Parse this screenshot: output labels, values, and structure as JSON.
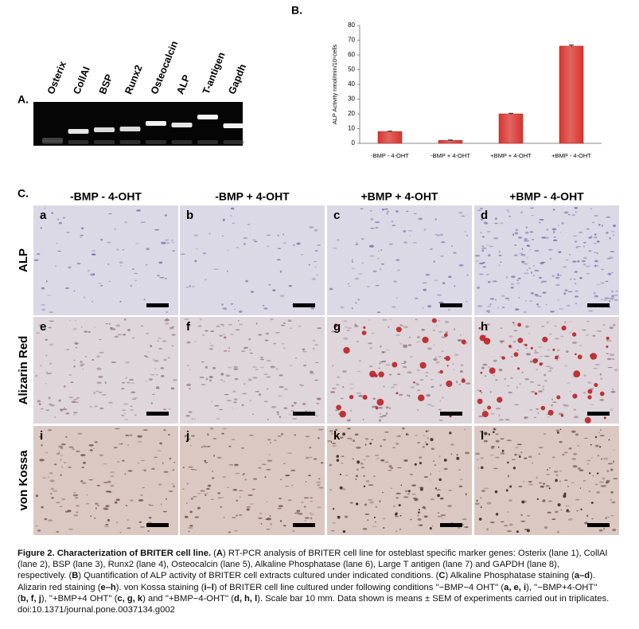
{
  "panel_labels": [
    "A.",
    "B.",
    "C."
  ],
  "gel": {
    "lanes": [
      "Osterix",
      "CollAI",
      "BSP",
      "Runx2",
      "Osteocalcin",
      "ALP",
      "T-antigen",
      "Gapdh"
    ]
  },
  "chart_data": {
    "type": "bar",
    "ylabel": "ALP Activity nmol/min/10⁶cells",
    "categories": [
      "-BMP - 4-OHT",
      "-BMP + 4-OHT",
      "+BMP + 4-OHT",
      "+BMP - 4-OHT"
    ],
    "values": [
      8,
      2,
      20,
      66
    ],
    "errors": [
      0.3,
      0.3,
      0.4,
      0.8
    ],
    "color": "#d8332c",
    "ylim": [
      0,
      80
    ],
    "yticks": [
      0,
      10,
      20,
      30,
      40,
      50,
      60,
      70,
      80
    ],
    "grid": false
  },
  "staining": {
    "columns": [
      "-BMP - 4-OHT",
      "-BMP + 4-OHT",
      "+BMP + 4-OHT",
      "+BMP - 4-OHT"
    ],
    "rows": [
      "ALP",
      "Alizarin Red",
      "von Kossa"
    ],
    "letters": [
      [
        "a",
        "b",
        "c",
        "d"
      ],
      [
        "e",
        "f",
        "g",
        "h"
      ],
      [
        "i",
        "j",
        "k",
        "l"
      ]
    ]
  },
  "caption": {
    "parts": [
      {
        "text": "Figure 2. Characterization of BRITER cell line.",
        "bold": true
      },
      {
        "text": " (",
        "bold": false
      },
      {
        "text": "A",
        "bold": true
      },
      {
        "text": ") RT-PCR analysis of BRITER cell line for osteblast specific marker genes: Osterix (lane 1), CollAI (lane 2), BSP (lane 3), Runx2 (lane 4), Osteocalcin (lane 5), Alkaline Phosphatase (lane 6), Large T antigen (lane 7) and GAPDH (lane 8), respectively. (",
        "bold": false
      },
      {
        "text": "B",
        "bold": true
      },
      {
        "text": ") Quantification of ALP activity of BRITER cell extracts cultured under indicated conditions. (",
        "bold": false
      },
      {
        "text": "C",
        "bold": true
      },
      {
        "text": ") Alkaline Phosphatase staining (",
        "bold": false
      },
      {
        "text": "a–d",
        "bold": true
      },
      {
        "text": "). Alizarin red staining (",
        "bold": false
      },
      {
        "text": "e–h",
        "bold": true
      },
      {
        "text": "). von Kossa staining (",
        "bold": false
      },
      {
        "text": "i–l",
        "bold": true
      },
      {
        "text": ") of BRITER cell line cultured under following conditions ''−BMP−4 OHT'' (",
        "bold": false
      },
      {
        "text": "a, e, i",
        "bold": true
      },
      {
        "text": "), ''−BMP+4-OHT'' (",
        "bold": false
      },
      {
        "text": "b, f, j",
        "bold": true
      },
      {
        "text": "), ''+BMP+4 OHT'' (",
        "bold": false
      },
      {
        "text": "c, g, k",
        "bold": true
      },
      {
        "text": ") and ''+BMP−4-OHT'' (",
        "bold": false
      },
      {
        "text": "d, h, l",
        "bold": true
      },
      {
        "text": "). Scale bar 10 mm. Data shown is means ± SEM of experiments carried out in triplicates.",
        "bold": false
      }
    ],
    "doi": "doi:10.1371/journal.pone.0037134.g002"
  }
}
